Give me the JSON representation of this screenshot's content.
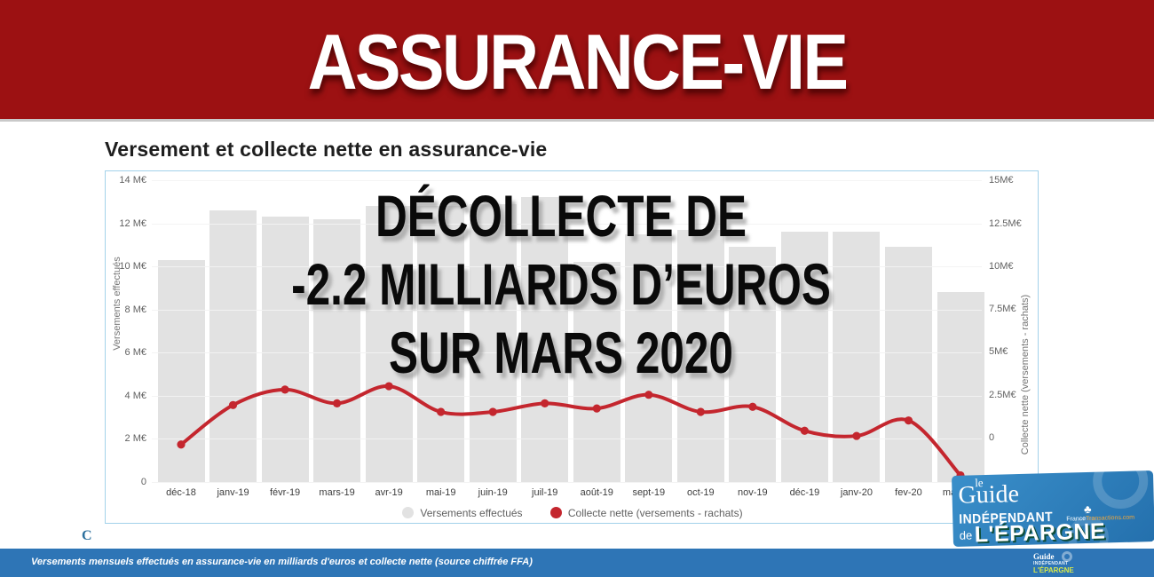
{
  "banner": {
    "title": "ASSURANCE-VIE",
    "bg_color": "#9c1112"
  },
  "chart": {
    "title": "Versement et collecte nette en assurance-vie",
    "left_axis_title": "Versements effectués",
    "right_axis_title": "Collecte nette (versements - rachats)",
    "legend": [
      {
        "label": "Versements effectués",
        "color": "#e2e2e2"
      },
      {
        "label": "Collecte nette (versements - rachats)",
        "color": "#c4262e"
      }
    ],
    "reload_glyph": "C"
  },
  "chart_data": {
    "type": "bar",
    "subtype": "combo bar + curved line, dual axis",
    "title": "Versement et collecte nette en assurance-vie",
    "categories": [
      "déc-18",
      "janv-19",
      "févr-19",
      "mars-19",
      "avr-19",
      "mai-19",
      "juin-19",
      "juil-19",
      "août-19",
      "sept-19",
      "oct-19",
      "nov-19",
      "déc-19",
      "janv-20",
      "fev-20",
      "mars-20"
    ],
    "series": [
      {
        "name": "Versements effectués",
        "type": "bar",
        "axis": "left",
        "color": "#e2e2e2",
        "values": [
          10.3,
          12.6,
          12.3,
          12.2,
          12.8,
          12.8,
          12.9,
          13.2,
          10.2,
          11.5,
          11.7,
          10.9,
          11.6,
          11.6,
          10.9,
          8.8
        ]
      },
      {
        "name": "Collecte nette (versements - rachats)",
        "type": "line",
        "axis": "right",
        "color": "#c4262e",
        "values": [
          -0.4,
          1.9,
          2.8,
          2.0,
          3.0,
          1.5,
          1.5,
          2.0,
          1.7,
          2.5,
          1.5,
          1.8,
          0.4,
          0.1,
          1.0,
          -2.2
        ]
      }
    ],
    "left_axis": {
      "label": "Versements effectués",
      "tick_values": [
        14,
        12,
        10,
        8,
        6,
        4,
        2,
        0
      ],
      "tick_labels": [
        "14 M€",
        "12 M€",
        "10 M€",
        "8 M€",
        "6 M€",
        "4 M€",
        "2 M€",
        "0"
      ],
      "range": [
        0,
        14
      ]
    },
    "right_axis": {
      "label": "Collecte nette (versements - rachats)",
      "tick_values": [
        15,
        12.5,
        10,
        7.5,
        5,
        2.5,
        0
      ],
      "tick_labels": [
        "15M€",
        "12.5M€",
        "10M€",
        "7.5M€",
        "5M€",
        "2.5M€",
        "0"
      ],
      "range": [
        -2.6,
        15
      ]
    },
    "grid": true,
    "legend_position": "bottom",
    "units": "milliards d'euros (M€)"
  },
  "overlay": {
    "line1": "DÉCOLLECTE DE",
    "line2": "-2.2 MILLIARDS D’EUROS",
    "line3": "SUR MARS 2020"
  },
  "logo": {
    "le": "le",
    "guide": "Guide",
    "independant": "INDÉPENDANT",
    "site_prefix": "France",
    "site_suffix": "Transactions.com",
    "de": "de",
    "epargne": "L'ÉPARGNE"
  },
  "mini_logo": {
    "guide": "Guide",
    "independant": "INDÉPENDANT",
    "epargne": "L'ÉPARGNE"
  },
  "footer": {
    "caption": "Versements mensuels effectués en assurance-vie en milliards d'euros et collecte nette (source chiffrée FFA)"
  },
  "colors": {
    "banner_red": "#9c1112",
    "bar_gray": "#e2e2e2",
    "line_red": "#c4262e",
    "strip_blue": "#2e75b6",
    "logo_blue": "#2d81c0"
  }
}
